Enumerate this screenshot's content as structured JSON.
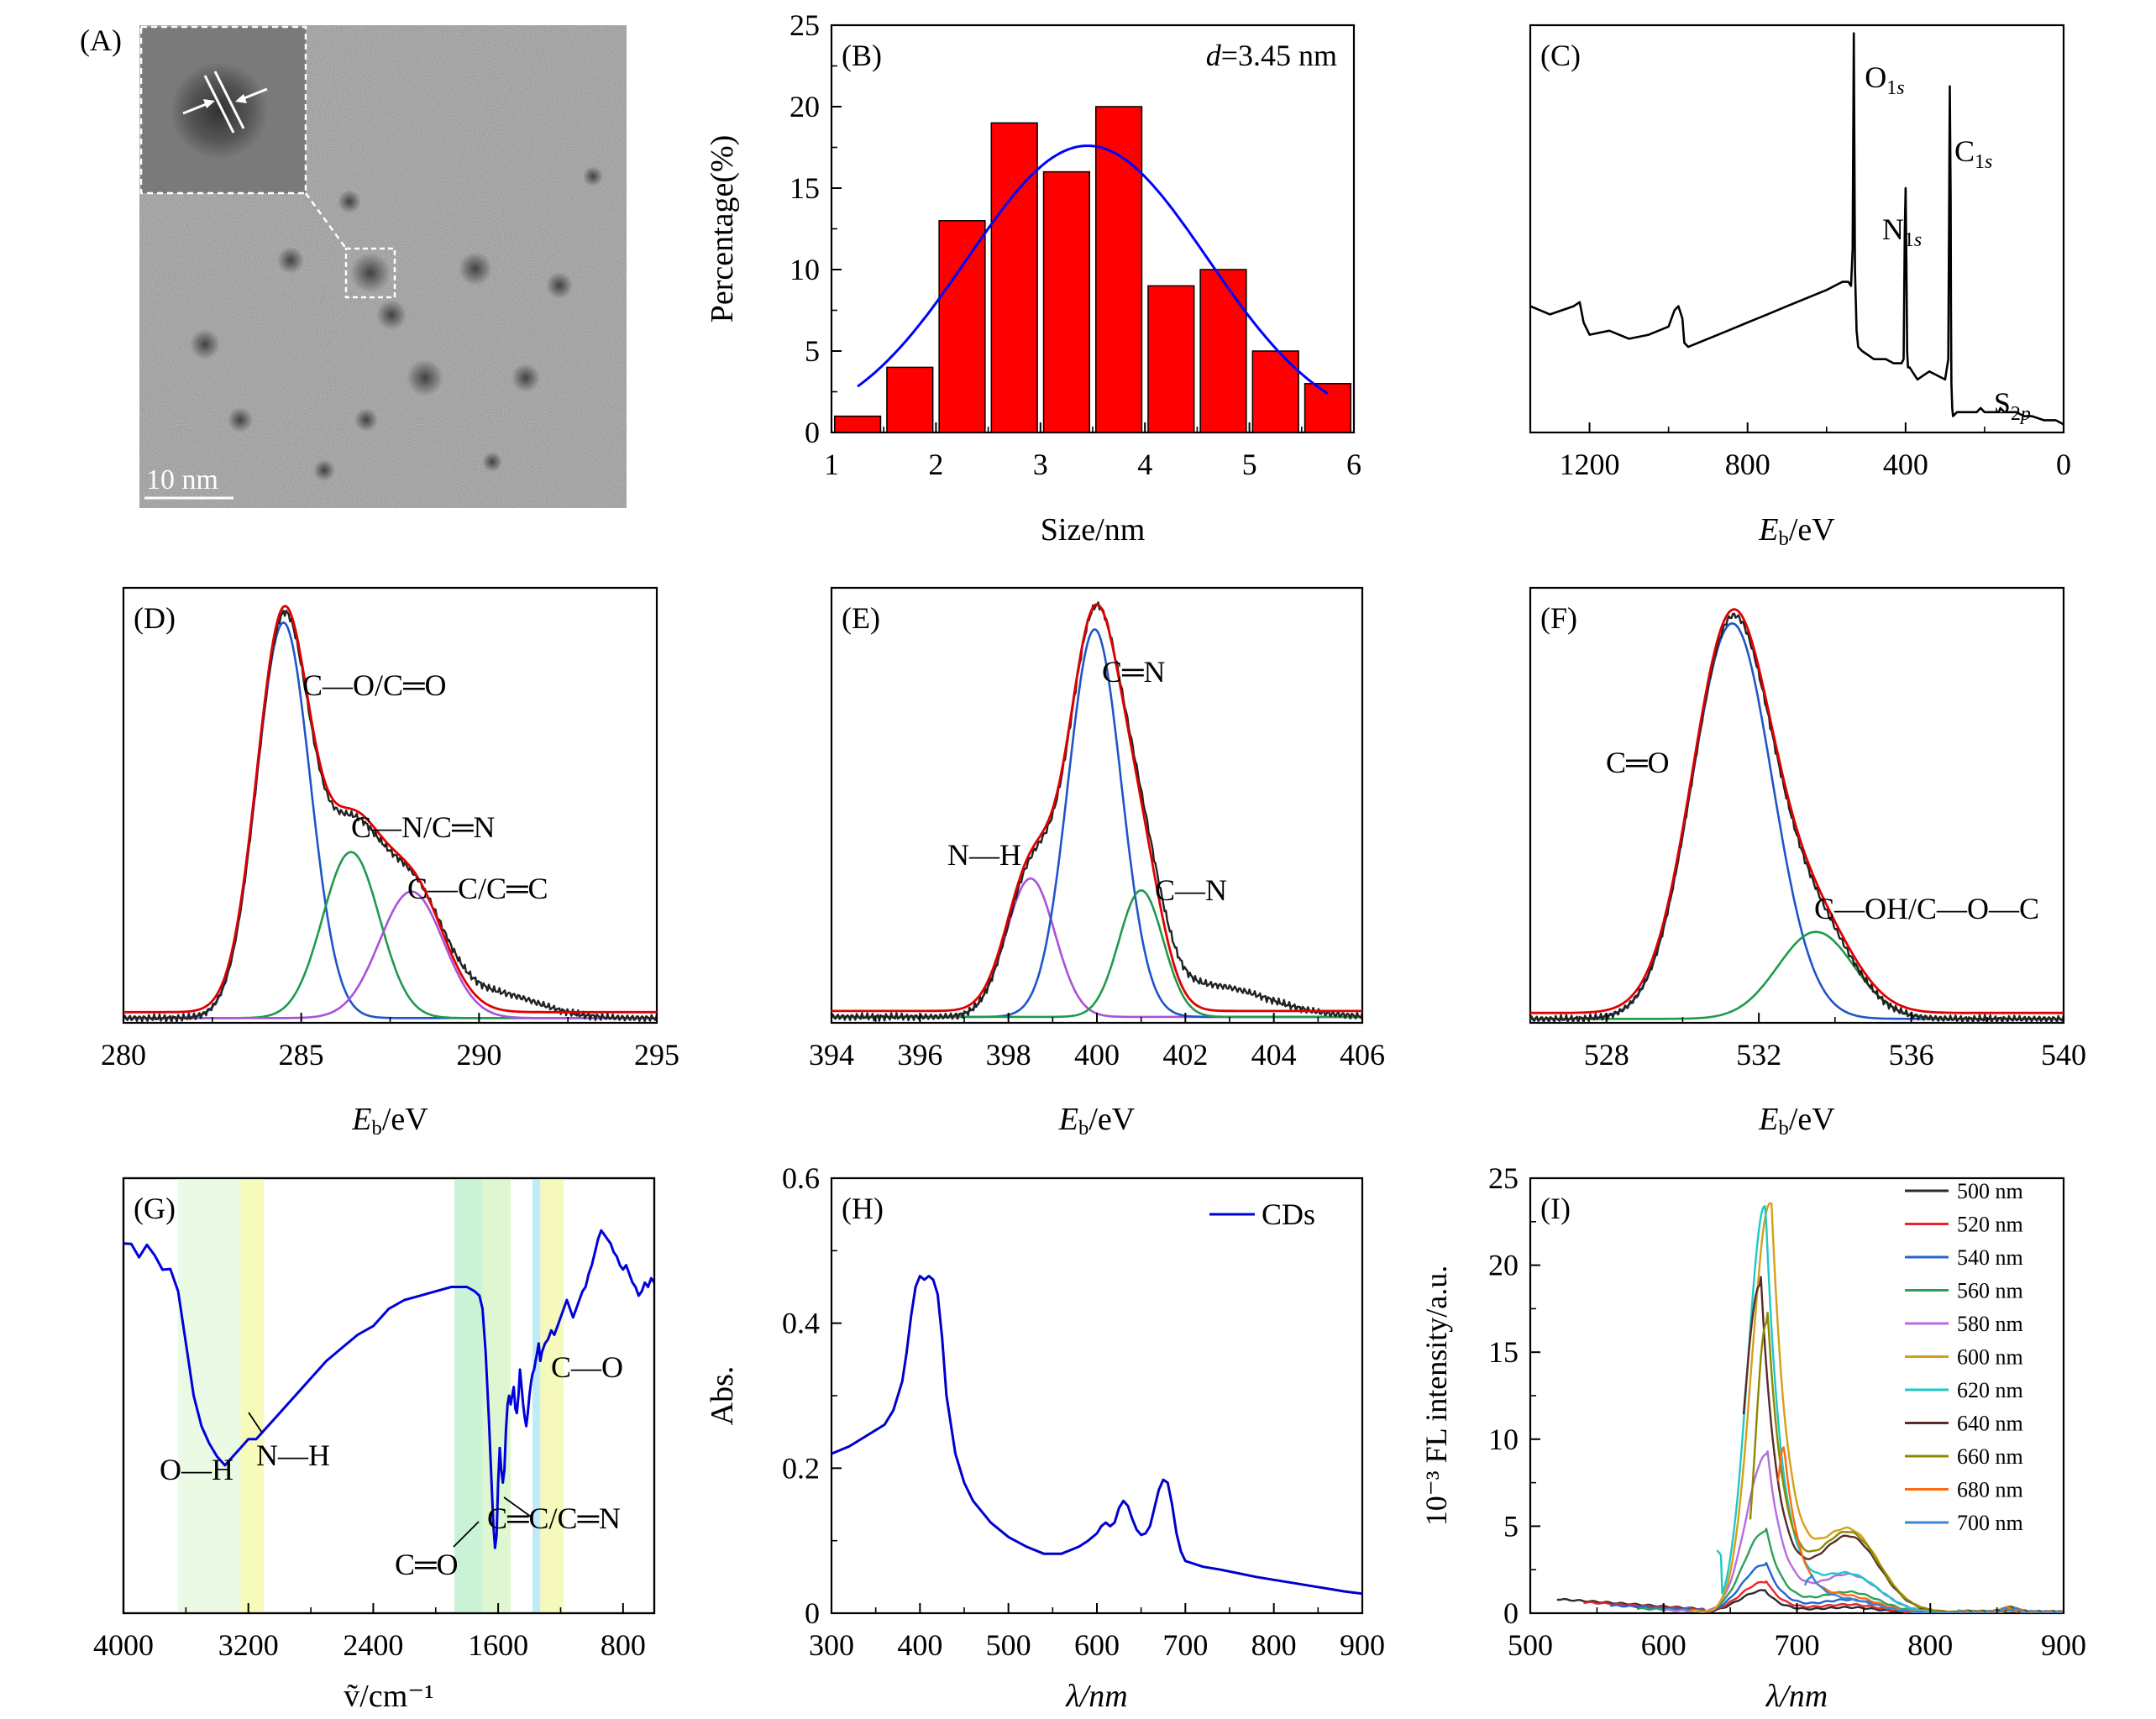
{
  "panels": {
    "A": {
      "label": "(A)",
      "scale_label": "10 nm",
      "colors": {
        "noise_dark": "#6e6e6e",
        "noise_light": "#a5a5a5",
        "marker": "#ffffff"
      }
    },
    "B": {
      "label": "(B)",
      "annotation_italic": "d",
      "annotation_rest": "=3.45 nm",
      "xlabel": "Size/nm",
      "ylabel": "Percentage(%)",
      "colors": {
        "bar": "#ff0000",
        "fit": "#0000ff"
      }
    },
    "C": {
      "label": "(C)",
      "xlabel_main": "E",
      "xlabel_sub": "b",
      "xlabel_unit": "/eV",
      "peak_labels": [
        {
          "el": "O",
          "sub": "1",
          "subi": "s",
          "x": 531
        },
        {
          "el": "N",
          "sub": "1",
          "subi": "s",
          "x": 400
        },
        {
          "el": "C",
          "sub": "1",
          "subi": "s",
          "x": 285
        },
        {
          "el": "S",
          "sub": "2",
          "subi": "p",
          "x": 164
        }
      ]
    },
    "D": {
      "label": "(D)",
      "xlabel_main": "E",
      "xlabel_sub": "b",
      "xlabel_unit": "/eV",
      "annotations": [
        "C—O/C═O",
        "C—N/C═N",
        "C—C/C═C"
      ]
    },
    "E": {
      "label": "(E)",
      "xlabel_main": "E",
      "xlabel_sub": "b",
      "xlabel_unit": "/eV",
      "annotations": [
        "C═N",
        "N—H",
        "C—N"
      ]
    },
    "F": {
      "label": "(F)",
      "xlabel_main": "E",
      "xlabel_sub": "b",
      "xlabel_unit": "/eV",
      "annotations": [
        "C═O",
        "C—OH/C—O—C"
      ]
    },
    "G": {
      "label": "(G)",
      "xlabel": "ṽ/cm⁻¹",
      "annotations": [
        "O—H",
        "N—H",
        "C═O",
        "C═C/C═N",
        "C—O"
      ],
      "band_colors": [
        "#e6f9e0",
        "#f5fab0",
        "#bff0d0",
        "#d9f6c8",
        "#b3e8f5",
        "#f4f8b0"
      ]
    },
    "H": {
      "label": "(H)",
      "xlabel": "λ/nm",
      "ylabel": "Abs.",
      "legend": "CDs",
      "line_color": "#0000cd"
    },
    "I": {
      "label": "(I)",
      "xlabel": "λ/nm",
      "ylabel": "10⁻³ FL intensity/a.u."
    }
  },
  "chart_data": [
    {
      "panel": "B",
      "type": "bar",
      "categories": [
        1.25,
        1.75,
        2.25,
        2.75,
        3.25,
        3.75,
        4.25,
        4.75,
        5.25,
        5.75
      ],
      "values": [
        1,
        4,
        13,
        19,
        16,
        20,
        9,
        10,
        5,
        3
      ],
      "fit": {
        "type": "gaussian",
        "center": 3.45,
        "sigma": 1.15,
        "amplitude": 17.6,
        "x_range": [
          1.25,
          5.75
        ]
      },
      "xlim": [
        1,
        6
      ],
      "ylim": [
        0,
        25
      ],
      "xticks": [
        1,
        2,
        3,
        4,
        5,
        6
      ],
      "yticks": [
        0,
        5,
        10,
        15,
        20,
        25
      ]
    },
    {
      "panel": "C",
      "type": "line",
      "xlim": [
        1350,
        0
      ],
      "ylim": [
        0,
        100
      ],
      "xticks": [
        1200,
        800,
        400,
        0
      ],
      "series": [
        {
          "x": [
            1350,
            1300,
            1240,
            1225,
            1215,
            1200,
            1150,
            1100,
            1050,
            1000,
            985,
            975,
            965,
            960,
            950,
            900,
            850,
            800,
            750,
            700,
            650,
            600,
            560,
            545,
            538,
            534,
            531,
            528,
            524,
            520,
            510,
            480,
            450,
            430,
            415,
            410,
            405,
            402,
            400,
            398,
            396,
            394,
            390,
            370,
            340,
            320,
            300,
            292,
            288,
            286,
            285,
            284,
            282,
            280,
            270,
            250,
            230,
            220,
            210,
            200,
            180,
            168,
            164,
            160,
            150,
            120,
            100,
            80,
            50,
            20,
            0
          ],
          "y": [
            31,
            29,
            31,
            32,
            27,
            24,
            25,
            23,
            24,
            26,
            30,
            31,
            28,
            22,
            21,
            23,
            25,
            27,
            29,
            31,
            33,
            35,
            37,
            37,
            36,
            45,
            98,
            40,
            25,
            21,
            20,
            18,
            18,
            17,
            17,
            17,
            18,
            50,
            60,
            42,
            20,
            16,
            16,
            13,
            15,
            14,
            13,
            18,
            85,
            58,
            30,
            12,
            6,
            4,
            5,
            5,
            5,
            5,
            6,
            5,
            5,
            5,
            5,
            6,
            5,
            5,
            4,
            4,
            3,
            3,
            2
          ]
        }
      ]
    },
    {
      "panel": "D",
      "type": "line",
      "xlim": [
        280,
        295
      ],
      "ylim": [
        0,
        1.1
      ],
      "xticks": [
        280,
        285,
        290,
        295
      ],
      "components": [
        {
          "name": "C—O/C═O",
          "center": 284.5,
          "sigma": 0.75,
          "amplitude": 1.0
        },
        {
          "name": "C—N/C═N",
          "center": 286.4,
          "sigma": 0.8,
          "amplitude": 0.42
        },
        {
          "name": "C—C/C═C",
          "center": 288.1,
          "sigma": 0.9,
          "amplitude": 0.32
        }
      ],
      "background": {
        "base": 0.012,
        "tail_amplitude": 0.06,
        "tail_center": 290.5,
        "tail_sigma": 1.2
      }
    },
    {
      "panel": "E",
      "type": "line",
      "xlim": [
        394,
        406
      ],
      "ylim": [
        0,
        1.1
      ],
      "xticks": [
        394,
        396,
        398,
        400,
        402,
        404,
        406
      ],
      "components": [
        {
          "name": "N—H",
          "center": 398.5,
          "sigma": 0.55,
          "amplitude": 0.35
        },
        {
          "name": "C═N",
          "center": 399.95,
          "sigma": 0.6,
          "amplitude": 0.98
        },
        {
          "name": "C—N",
          "center": 401.0,
          "sigma": 0.5,
          "amplitude": 0.32
        }
      ],
      "background": {
        "base": 0.015,
        "tail_amplitude": 0.08,
        "tail_center": 402.5,
        "tail_sigma": 1.3
      }
    },
    {
      "panel": "F",
      "type": "line",
      "xlim": [
        526,
        540
      ],
      "ylim": [
        0,
        1.1
      ],
      "xticks": [
        528,
        532,
        536,
        540
      ],
      "components": [
        {
          "name": "C═O",
          "center": 531.3,
          "sigma": 1.05,
          "amplitude": 1.0
        },
        {
          "name": "C—OH/C—O—C",
          "center": 533.5,
          "sigma": 1.0,
          "amplitude": 0.22
        }
      ],
      "background": {
        "base": 0.01,
        "tail_amplitude": 0.0,
        "tail_center": 534,
        "tail_sigma": 1
      }
    },
    {
      "panel": "G",
      "type": "line",
      "xlim": [
        4000,
        600
      ],
      "ylim": [
        0,
        1
      ],
      "xticks": [
        4000,
        3200,
        2400,
        1600,
        800
      ],
      "bands": [
        [
          3650,
          3250
        ],
        [
          3250,
          3100
        ],
        [
          1880,
          1700
        ],
        [
          1700,
          1520
        ],
        [
          1380,
          1330
        ],
        [
          1330,
          1180
        ]
      ],
      "series": [
        {
          "x": [
            4000,
            3950,
            3900,
            3850,
            3800,
            3750,
            3700,
            3650,
            3600,
            3550,
            3500,
            3450,
            3400,
            3350,
            3300,
            3250,
            3200,
            3150,
            3100,
            3050,
            3000,
            2900,
            2800,
            2700,
            2600,
            2500,
            2400,
            2300,
            2200,
            2100,
            2000,
            1900,
            1800,
            1750,
            1720,
            1700,
            1680,
            1660,
            1640,
            1630,
            1620,
            1610,
            1600,
            1590,
            1580,
            1570,
            1560,
            1550,
            1540,
            1530,
            1520,
            1510,
            1500,
            1490,
            1480,
            1470,
            1460,
            1450,
            1440,
            1430,
            1420,
            1410,
            1400,
            1390,
            1380,
            1370,
            1360,
            1350,
            1340,
            1330,
            1320,
            1300,
            1280,
            1260,
            1240,
            1220,
            1200,
            1180,
            1160,
            1140,
            1120,
            1100,
            1080,
            1060,
            1040,
            1020,
            1000,
            980,
            960,
            940,
            920,
            900,
            880,
            860,
            840,
            820,
            800,
            780,
            760,
            740,
            720,
            700,
            680,
            660,
            640,
            620,
            600
          ],
          "y": [
            0.85,
            0.84,
            0.83,
            0.84,
            0.82,
            0.8,
            0.78,
            0.74,
            0.62,
            0.5,
            0.43,
            0.39,
            0.36,
            0.34,
            0.36,
            0.38,
            0.4,
            0.4,
            0.42,
            0.44,
            0.46,
            0.5,
            0.54,
            0.58,
            0.61,
            0.64,
            0.66,
            0.7,
            0.72,
            0.73,
            0.74,
            0.75,
            0.75,
            0.74,
            0.73,
            0.7,
            0.6,
            0.45,
            0.28,
            0.2,
            0.15,
            0.18,
            0.3,
            0.38,
            0.33,
            0.3,
            0.33,
            0.42,
            0.48,
            0.5,
            0.48,
            0.5,
            0.52,
            0.47,
            0.46,
            0.5,
            0.56,
            0.52,
            0.48,
            0.45,
            0.43,
            0.46,
            0.5,
            0.53,
            0.55,
            0.56,
            0.58,
            0.6,
            0.62,
            0.58,
            0.6,
            0.62,
            0.63,
            0.65,
            0.64,
            0.66,
            0.68,
            0.7,
            0.72,
            0.7,
            0.68,
            0.7,
            0.72,
            0.74,
            0.75,
            0.78,
            0.8,
            0.83,
            0.86,
            0.88,
            0.87,
            0.86,
            0.85,
            0.83,
            0.82,
            0.8,
            0.79,
            0.8,
            0.78,
            0.76,
            0.75,
            0.73,
            0.74,
            0.76,
            0.75,
            0.77,
            0.76
          ]
        }
      ]
    },
    {
      "panel": "H",
      "type": "line",
      "xlim": [
        300,
        900
      ],
      "ylim": [
        0,
        0.6
      ],
      "xticks": [
        300,
        400,
        500,
        600,
        700,
        800,
        900
      ],
      "yticks": [
        0,
        0.2,
        0.4,
        0.6
      ],
      "series": [
        {
          "name": "CDs",
          "x": [
            300,
            320,
            340,
            360,
            370,
            380,
            385,
            390,
            395,
            400,
            405,
            410,
            415,
            420,
            425,
            430,
            440,
            450,
            460,
            480,
            500,
            520,
            540,
            560,
            580,
            590,
            600,
            605,
            610,
            615,
            620,
            625,
            630,
            635,
            640,
            645,
            650,
            655,
            660,
            665,
            670,
            675,
            680,
            685,
            690,
            695,
            700,
            710,
            720,
            740,
            760,
            780,
            800,
            820,
            840,
            860,
            880,
            900
          ],
          "y": [
            0.22,
            0.23,
            0.245,
            0.26,
            0.28,
            0.32,
            0.36,
            0.41,
            0.45,
            0.465,
            0.46,
            0.465,
            0.46,
            0.44,
            0.38,
            0.3,
            0.22,
            0.18,
            0.155,
            0.125,
            0.105,
            0.092,
            0.082,
            0.082,
            0.092,
            0.1,
            0.11,
            0.12,
            0.125,
            0.12,
            0.125,
            0.145,
            0.155,
            0.148,
            0.13,
            0.115,
            0.108,
            0.11,
            0.12,
            0.145,
            0.17,
            0.184,
            0.18,
            0.15,
            0.11,
            0.085,
            0.072,
            0.068,
            0.064,
            0.06,
            0.055,
            0.05,
            0.046,
            0.042,
            0.038,
            0.034,
            0.03,
            0.027
          ]
        }
      ]
    },
    {
      "panel": "I",
      "type": "line",
      "xlim": [
        500,
        900
      ],
      "ylim": [
        0,
        25
      ],
      "xticks": [
        500,
        600,
        700,
        800,
        900
      ],
      "yticks": [
        0,
        5,
        10,
        15,
        20,
        25
      ],
      "series": [
        {
          "name": "500 nm",
          "color": "#2b2b2b",
          "start": 520,
          "pre": 0.9,
          "peak": 1.3,
          "center": 675,
          "width_left": 18,
          "shoulder": 0.3
        },
        {
          "name": "520 nm",
          "color": "#e8262b",
          "start": 540,
          "pre": 0.7,
          "peak": 1.8,
          "center": 676,
          "width_left": 18,
          "shoulder": 0.45
        },
        {
          "name": "540 nm",
          "color": "#2266cc",
          "start": 560,
          "pre": 0.5,
          "peak": 2.8,
          "center": 676,
          "width_left": 17,
          "shoulder": 0.7
        },
        {
          "name": "560 nm",
          "color": "#2ca05a",
          "start": 580,
          "pre": 0.3,
          "peak": 4.7,
          "center": 676,
          "width_left": 16,
          "shoulder": 1.1
        },
        {
          "name": "580 nm",
          "color": "#b36ee0",
          "start": 600,
          "pre": 0.2,
          "peak": 9.1,
          "center": 677,
          "width_left": 15,
          "shoulder": 2.0
        },
        {
          "name": "600 nm",
          "color": "#d4a017",
          "start": 620,
          "pre": 0.15,
          "peak": 23.6,
          "center": 680,
          "width_left": 14,
          "shoulder": 4.3
        },
        {
          "name": "620 nm",
          "color": "#1ec8c8",
          "start": 640,
          "pre": 4.0,
          "peak": 23.4,
          "center": 676,
          "width_left": 13,
          "shoulder": 2.0
        },
        {
          "name": "640 nm",
          "color": "#5a2a2a",
          "start": 660,
          "pre": 17.0,
          "peak": 18.8,
          "center": 672,
          "width_left": 12,
          "shoulder": 4.0
        },
        {
          "name": "660 nm",
          "color": "#8a8a00",
          "start": 665,
          "pre": 12.0,
          "peak": 16.7,
          "center": 677,
          "width_left": 8,
          "shoulder": 4.2
        },
        {
          "name": "680 nm",
          "color": "#ff6a13",
          "start": 686,
          "pre": 9.5,
          "peak": 9.5,
          "center": 690,
          "width_left": 6,
          "shoulder": 0.8
        },
        {
          "name": "700 nm",
          "color": "#3a86d0",
          "start": 706,
          "pre": 2.0,
          "peak": 2.0,
          "center": 710,
          "width_left": 6,
          "shoulder": 0.6
        }
      ]
    }
  ]
}
